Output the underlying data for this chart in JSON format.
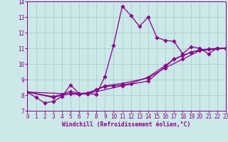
{
  "xlabel": "Windchill (Refroidissement éolien,°C)",
  "xlim": [
    0,
    23
  ],
  "ylim": [
    7,
    14
  ],
  "xticks": [
    0,
    1,
    2,
    3,
    4,
    5,
    6,
    7,
    8,
    9,
    10,
    11,
    12,
    13,
    14,
    15,
    16,
    17,
    18,
    19,
    20,
    21,
    22,
    23
  ],
  "yticks": [
    7,
    8,
    9,
    10,
    11,
    12,
    13,
    14
  ],
  "bg_color": "#cce8e8",
  "grid_color": "#aacfcf",
  "line_color": "#880088",
  "line1_x": [
    0,
    1,
    2,
    3,
    4,
    5,
    6,
    7,
    8,
    9,
    10,
    11,
    12,
    13,
    14,
    15,
    16,
    17,
    18,
    19,
    20,
    21,
    22,
    23
  ],
  "line1_y": [
    8.2,
    7.85,
    7.5,
    7.6,
    7.9,
    8.65,
    8.1,
    8.1,
    8.05,
    9.2,
    11.2,
    13.7,
    13.1,
    12.4,
    13.0,
    11.7,
    11.5,
    11.45,
    10.65,
    11.1,
    11.0,
    10.65,
    11.0,
    11.0
  ],
  "line2_x": [
    0,
    3,
    4,
    5,
    6,
    7,
    8,
    9,
    10,
    11,
    12,
    14,
    16,
    17,
    18,
    19,
    20,
    21,
    22,
    23
  ],
  "line2_y": [
    8.2,
    7.9,
    8.05,
    8.25,
    8.1,
    8.15,
    8.35,
    8.55,
    8.6,
    8.65,
    8.75,
    9.15,
    9.9,
    10.3,
    10.55,
    10.75,
    10.9,
    10.95,
    11.0,
    11.0
  ],
  "line3_x": [
    0,
    3,
    5,
    7,
    9,
    11,
    14,
    16,
    18,
    20,
    23
  ],
  "line3_y": [
    8.2,
    7.85,
    8.1,
    8.1,
    8.6,
    8.75,
    9.1,
    9.75,
    10.3,
    10.85,
    11.0
  ],
  "line4_x": [
    0,
    6,
    7,
    11,
    14,
    17,
    19,
    21,
    23
  ],
  "line4_y": [
    8.2,
    8.05,
    8.1,
    8.6,
    8.9,
    10.3,
    10.75,
    10.95,
    11.0
  ]
}
